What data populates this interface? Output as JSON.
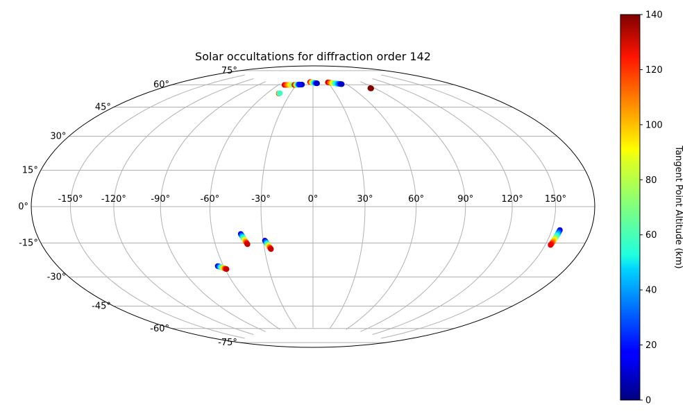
{
  "chart_data": {
    "type": "scatter",
    "projection": "hammer",
    "title": "Solar occultations for diffraction order 142",
    "xlabel": "",
    "ylabel": "",
    "grid": true,
    "lon_ticks": [
      -150,
      -120,
      -90,
      -60,
      -30,
      0,
      30,
      60,
      90,
      120,
      150
    ],
    "lon_tick_labels": [
      "-150°",
      "-120°",
      "-90°",
      "-60°",
      "-30°",
      "0°",
      "30°",
      "60°",
      "90°",
      "120°",
      "150°"
    ],
    "lat_ticks": [
      -75,
      -60,
      -45,
      -30,
      -15,
      0,
      15,
      30,
      45,
      60,
      75
    ],
    "lat_tick_labels": [
      "-75°",
      "-60°",
      "-45°",
      "-30°",
      "-15°",
      "0°",
      "15°",
      "30°",
      "45°",
      "60°",
      "75°"
    ],
    "lat_range": [
      -75,
      75
    ],
    "colorbar": {
      "label": "Tangent Point Altitude (km)",
      "colormap": "jet",
      "range": [
        0,
        140
      ],
      "ticks": [
        0,
        20,
        40,
        60,
        80,
        100,
        120,
        140
      ],
      "tick_labels": [
        "0",
        "20",
        "40",
        "60",
        "80",
        "100",
        "120",
        "140"
      ]
    },
    "series": [
      {
        "lon_start": -50,
        "lat_start": 74.5,
        "lon_end": -20,
        "lat_end": 75.5,
        "alt_start": 130,
        "alt_end": 10
      },
      {
        "lon_start": -33,
        "lat_start": 75,
        "lon_end": -25,
        "lat_end": 75.5,
        "alt_start": 140,
        "alt_end": 20
      },
      {
        "lon_start": -45,
        "lat_start": 68.5,
        "lon_end": -44,
        "lat_end": 68.7,
        "alt_start": 140,
        "alt_end": 60
      },
      {
        "lon_start": -6,
        "lat_start": 77.5,
        "lon_end": 8,
        "lat_end": 76.5,
        "alt_start": 130,
        "alt_end": 10
      },
      {
        "lon_start": 30,
        "lat_start": 77,
        "lon_end": 52,
        "lat_end": 75,
        "alt_start": 135,
        "alt_end": 10
      },
      {
        "lon_start": 85,
        "lat_start": 70,
        "lon_end": 84.5,
        "lat_end": 70.2,
        "alt_start": 135,
        "alt_end": 140
      },
      {
        "lon_start": -43,
        "lat_start": -15.5,
        "lon_end": -40,
        "lat_end": -21.5,
        "alt_start": 10,
        "alt_end": 130
      },
      {
        "lon_start": -29,
        "lat_start": -19.5,
        "lon_end": -26,
        "lat_end": -24.5,
        "alt_start": 5,
        "alt_end": 130
      },
      {
        "lon_start": -64,
        "lat_start": -33.5,
        "lon_end": -59,
        "lat_end": -35.5,
        "alt_start": 5,
        "alt_end": 130
      },
      {
        "lon_start": 156,
        "lat_start": -10.5,
        "lon_end": 154,
        "lat_end": -17.5,
        "alt_start": 10,
        "alt_end": 125
      }
    ]
  }
}
